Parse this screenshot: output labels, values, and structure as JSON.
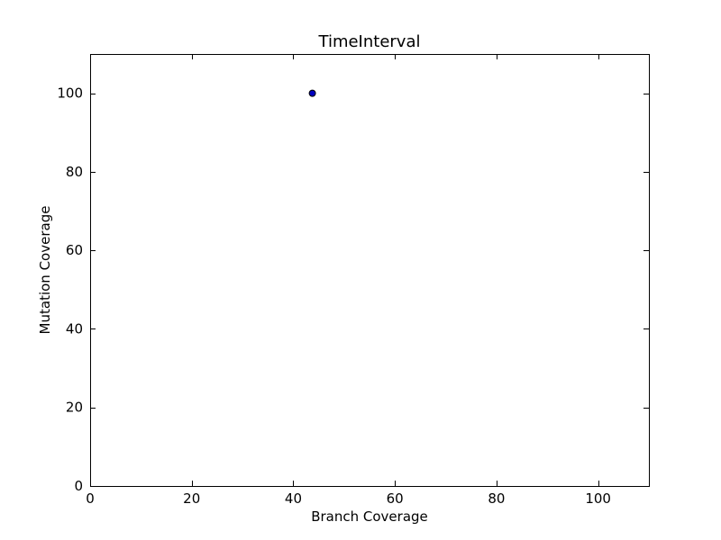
{
  "chart_data": {
    "type": "scatter",
    "title": "TimeInterval",
    "xlabel": "Branch Coverage",
    "ylabel": "Mutation Coverage",
    "xlim": [
      0,
      110
    ],
    "ylim": [
      0,
      110
    ],
    "xticks": [
      "0",
      "20",
      "40",
      "60",
      "80",
      "100"
    ],
    "yticks": [
      "0",
      "20",
      "40",
      "60",
      "80",
      "100"
    ],
    "grid": false,
    "series": [
      {
        "points": [
          {
            "x": 43.75,
            "y": 100
          }
        ],
        "color": "#0000bf"
      }
    ]
  }
}
